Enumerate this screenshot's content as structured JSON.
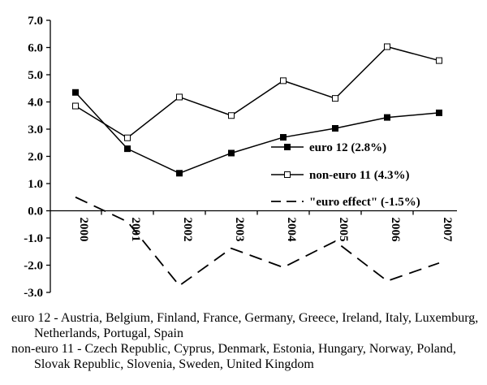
{
  "chart_data": {
    "type": "line",
    "categories": [
      "2000",
      "2001",
      "2002",
      "2003",
      "2004",
      "2005",
      "2006",
      "2007"
    ],
    "ylim": [
      -3.0,
      7.0
    ],
    "yticks": [
      "7.0",
      "6.0",
      "5.0",
      "4.0",
      "3.0",
      "2.0",
      "1.0",
      "0.0",
      "-1.0",
      "-2.0",
      "-3.0"
    ],
    "ytick_values": [
      7,
      6,
      5,
      4,
      3,
      2,
      1,
      0,
      -1,
      -2,
      -3
    ],
    "grid": false,
    "legend_position": "right",
    "series": [
      {
        "name": "euro 12 (2.8%)",
        "marker": "filled-square",
        "line": "solid",
        "values": [
          4.35,
          2.28,
          1.38,
          2.12,
          2.7,
          3.03,
          3.43,
          3.6
        ]
      },
      {
        "name": "non-euro 11 (4.3%)",
        "marker": "open-square",
        "line": "solid",
        "values": [
          3.85,
          2.68,
          4.18,
          3.5,
          4.78,
          4.13,
          6.03,
          5.52
        ]
      },
      {
        "name": "\"euro effect\" (-1.5%)",
        "marker": "none",
        "line": "dashed",
        "values": [
          0.5,
          -0.4,
          -2.75,
          -1.38,
          -2.08,
          -1.12,
          -2.58,
          -1.92
        ]
      }
    ]
  },
  "notes": [
    "euro 12 - Austria, Belgium, Finland, France, Germany, Greece, Ireland, Italy, Luxemburg, Netherlands, Portugal, Spain",
    "non-euro 11 - Czech Republic, Cyprus, Denmark, Estonia, Hungary, Norway, Poland, Slovak Republic, Slovenia, Sweden, United Kingdom"
  ]
}
